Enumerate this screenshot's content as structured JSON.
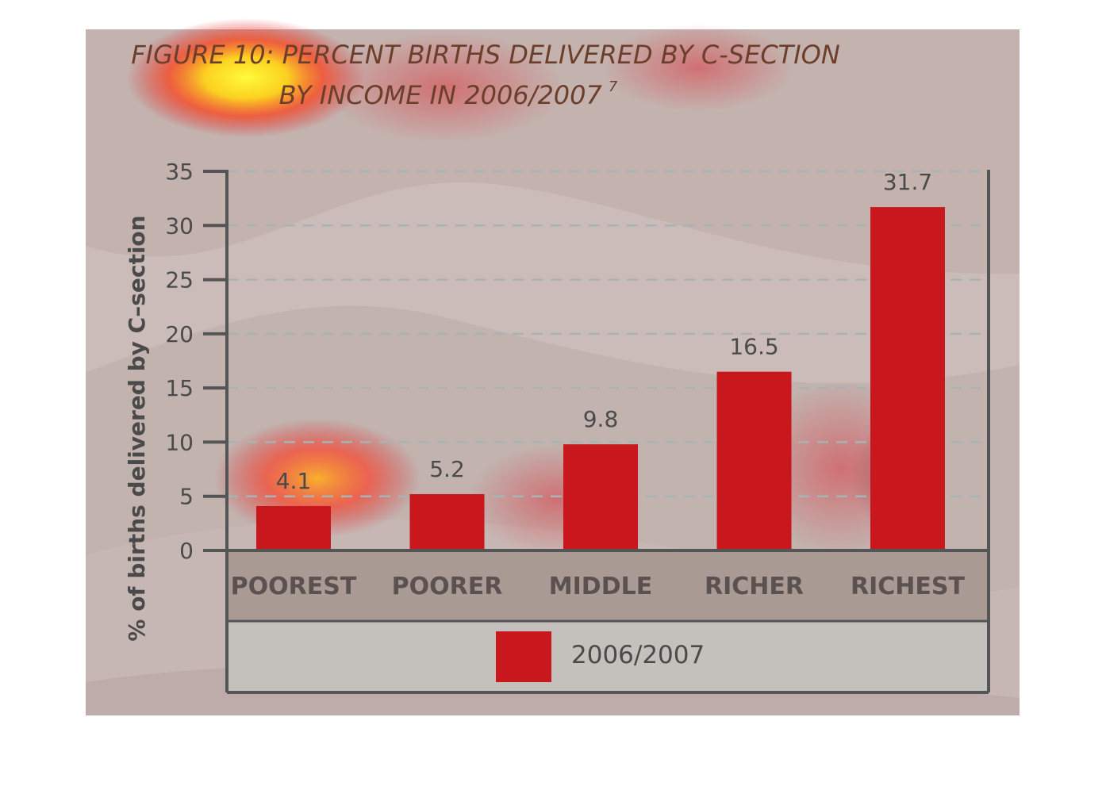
{
  "chart_data": {
    "type": "bar",
    "title": "FIGURE 10: PERCENT BIRTHS DELIVERED BY C-SECTION",
    "subtitle": "BY INCOME IN 2006/2007",
    "title_superscript": "7",
    "ylabel": "% of births delivered by C–section",
    "xlabel": "",
    "categories": [
      "POOREST",
      "POORER",
      "MIDDLE",
      "RICHER",
      "RICHEST"
    ],
    "series": [
      {
        "name": "2006/2007",
        "values": [
          4.1,
          5.2,
          9.8,
          16.5,
          31.7
        ],
        "color": "#c8171d"
      }
    ],
    "data_labels": [
      "4.1",
      "5.2",
      "9.8",
      "16.5",
      "31.7"
    ],
    "ylim": [
      0,
      35
    ],
    "yticks": [
      0,
      5,
      10,
      15,
      20,
      25,
      30,
      35
    ],
    "grid": true,
    "legend_position": "bottom"
  },
  "colors": {
    "panel_background": "#c4b2ae",
    "category_band": "#a99b93",
    "legend_band": "#c4c0bb",
    "axis": "#555555",
    "gridline": "#a9b3b3"
  }
}
